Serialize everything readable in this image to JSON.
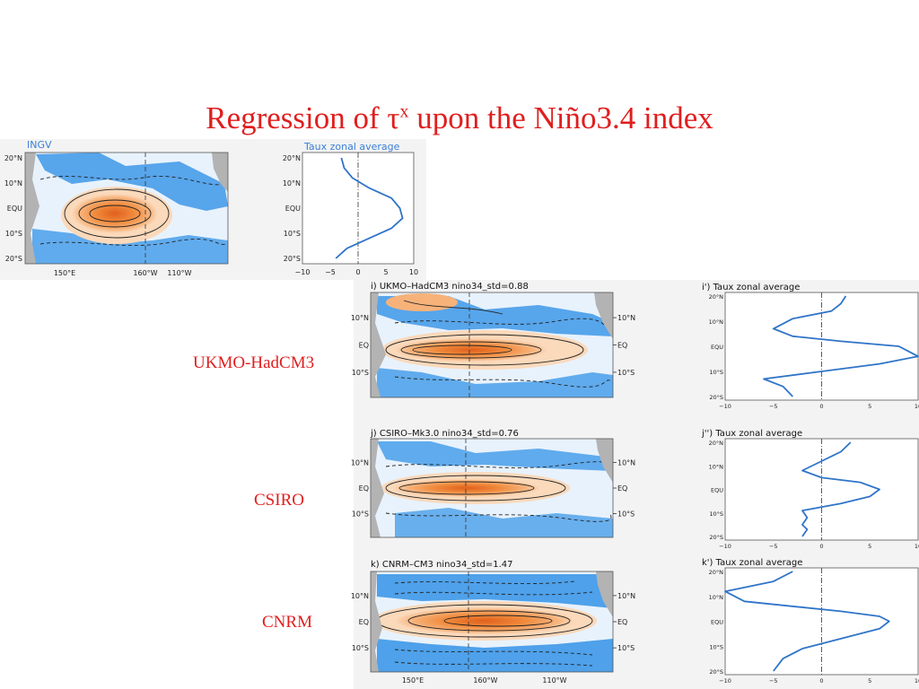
{
  "title": {
    "main": "Regression of τ",
    "sup": "x",
    "rest": " upon the Niño3.4 index"
  },
  "model_labels": [
    "UKMO-HadCM3",
    "CSIRO",
    "CNRM"
  ],
  "colors": {
    "title": "#e01e1e",
    "profile_line": "#2f74c8",
    "warm": "#f08a3c",
    "cool": "#3d98e8",
    "land": "#b3b3b3"
  },
  "chart_data": [
    {
      "type": "heatmap",
      "title": "INGV",
      "y_ticks": [
        "20°N",
        "10°N",
        "EQU",
        "10°S",
        "20°S"
      ],
      "x_ticks": [
        "150°E",
        "160°W",
        "110°W"
      ],
      "ylim": [
        -20,
        20
      ]
    },
    {
      "type": "line",
      "title": "Taux zonal average",
      "xlabel": "",
      "ylabel": "",
      "x_ticks": [
        "−10",
        "−5",
        "0",
        "5",
        "10"
      ],
      "y_ticks": [
        "20°N",
        "10°N",
        "EQU",
        "10°S",
        "20°S"
      ],
      "xlim": [
        -10,
        10
      ],
      "ylim": [
        -20,
        20
      ],
      "series": [
        {
          "x": [
            -3,
            -2.5,
            -1,
            2,
            6,
            7.5,
            8,
            6,
            2,
            -2,
            -4
          ],
          "y": [
            20,
            16,
            12,
            8,
            4,
            0,
            -4,
            -8,
            -12,
            -16,
            -20
          ]
        }
      ]
    },
    {
      "type": "heatmap",
      "title": "i) UKMO–HadCM3   nino34_std=0.88",
      "y_ticks": [
        "10°N",
        "EQ",
        "10°S"
      ]
    },
    {
      "type": "line",
      "title": "i') Taux zonal average",
      "x_ticks": [
        "−10",
        "−5",
        "0",
        "5",
        "10"
      ],
      "y_ticks": [
        "20°N",
        "10°N",
        "EQU",
        "10°S",
        "20°S"
      ],
      "xlim": [
        -10,
        10
      ],
      "ylim": [
        -20,
        20
      ],
      "series": [
        {
          "x": [
            2.5,
            2,
            1,
            -3,
            -5,
            -3,
            2,
            8,
            10,
            6,
            0,
            -6,
            -4,
            -3
          ],
          "y": [
            20,
            17,
            14,
            11,
            7,
            4,
            2,
            0,
            -4,
            -7,
            -10,
            -13,
            -16,
            -20
          ]
        }
      ]
    },
    {
      "type": "heatmap",
      "title": "j) CSIRO–Mk3.0   nino34_std=0.76",
      "y_ticks": [
        "10°N",
        "EQ",
        "10°S"
      ]
    },
    {
      "type": "line",
      "title": "j'') Taux zonal average",
      "x_ticks": [
        "−10",
        "−5",
        "0",
        "5",
        "10"
      ],
      "y_ticks": [
        "20°N",
        "10°N",
        "EQU",
        "10°S",
        "20°S"
      ],
      "xlim": [
        -10,
        10
      ],
      "ylim": [
        -20,
        20
      ],
      "series": [
        {
          "x": [
            3,
            2,
            0,
            -2,
            0,
            4,
            6,
            5,
            2,
            -2,
            -1.5,
            -2,
            -1.5,
            -2
          ],
          "y": [
            20,
            16,
            12,
            8,
            5,
            3,
            0,
            -3,
            -6,
            -9,
            -12,
            -15,
            -17,
            -20
          ]
        }
      ]
    },
    {
      "type": "heatmap",
      "title": "k) CNRM–CM3   nino34_std=1.47",
      "y_ticks": [
        "10°N",
        "EQ",
        "10°S"
      ],
      "x_ticks": [
        "150°E",
        "160°W",
        "110°W"
      ]
    },
    {
      "type": "line",
      "title": "k') Taux zonal average",
      "x_ticks": [
        "−10",
        "−5",
        "0",
        "5",
        "10"
      ],
      "y_ticks": [
        "20°N",
        "10°N",
        "EQU",
        "10°S",
        "20°S"
      ],
      "xlim": [
        -10,
        10
      ],
      "ylim": [
        -20,
        20
      ],
      "series": [
        {
          "x": [
            -3,
            -5,
            -10,
            -8,
            2,
            6,
            7,
            6,
            2,
            -2,
            -4,
            -5
          ],
          "y": [
            20,
            16,
            12,
            8,
            4,
            2,
            0,
            -3,
            -7,
            -11,
            -15,
            -20
          ]
        }
      ]
    }
  ]
}
